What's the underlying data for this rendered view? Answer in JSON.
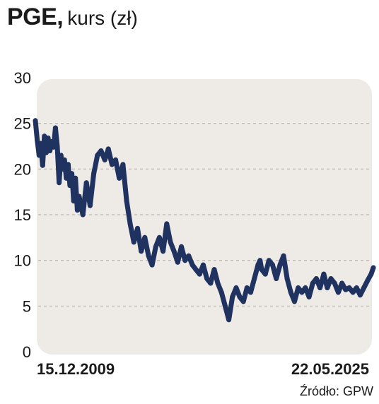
{
  "chart_data": {
    "type": "line",
    "title": "PGE,",
    "subtitle": "kurs (zł)",
    "xlabel": "",
    "ylabel": "",
    "ylim": [
      0,
      30
    ],
    "yticks": [
      0,
      5,
      10,
      15,
      20,
      25,
      30
    ],
    "ytick_labels": [
      "0",
      "5",
      "10",
      "15",
      "20",
      "25",
      "30"
    ],
    "x_start_label": "15.12.2009",
    "x_end_label": "22.05.2025",
    "grid": "horizontal dashed",
    "legend": "none",
    "series": [
      {
        "line_color": "#1f3260",
        "x": [
          "2009-12-15",
          "2010-01-15",
          "2010-02-15",
          "2010-03-15",
          "2010-04-15",
          "2010-05-15",
          "2010-06-15",
          "2010-07-15",
          "2010-08-15",
          "2010-09-15",
          "2010-10-15",
          "2010-11-15",
          "2010-12-15",
          "2011-01-15",
          "2011-02-15",
          "2011-03-15",
          "2011-04-15",
          "2011-05-15",
          "2011-06-15",
          "2011-07-15",
          "2011-08-15",
          "2011-09-15",
          "2011-10-15",
          "2011-11-15",
          "2011-12-15",
          "2012-02-15",
          "2012-04-15",
          "2012-06-15",
          "2012-08-15",
          "2012-10-15",
          "2012-12-15",
          "2013-02-15",
          "2013-04-15",
          "2013-06-15",
          "2013-08-15",
          "2013-10-15",
          "2013-12-15",
          "2014-02-15",
          "2014-04-15",
          "2014-06-15",
          "2014-08-15",
          "2014-10-15",
          "2014-12-15",
          "2015-02-15",
          "2015-04-15",
          "2015-06-15",
          "2015-08-15",
          "2015-10-15",
          "2015-12-15",
          "2016-02-15",
          "2016-04-15",
          "2016-06-15",
          "2016-08-15",
          "2016-10-15",
          "2016-12-15",
          "2017-02-15",
          "2017-04-15",
          "2017-06-15",
          "2017-08-15",
          "2017-10-15",
          "2017-12-15",
          "2018-02-15",
          "2018-04-15",
          "2018-06-15",
          "2018-08-15",
          "2018-10-15",
          "2018-12-15",
          "2019-02-15",
          "2019-04-15",
          "2019-06-15",
          "2019-08-15",
          "2019-10-15",
          "2019-12-15",
          "2020-02-15",
          "2020-03-20",
          "2020-04-15",
          "2020-06-15",
          "2020-08-15",
          "2020-10-15",
          "2020-12-15",
          "2021-02-15",
          "2021-04-15",
          "2021-06-15",
          "2021-08-15",
          "2021-10-15",
          "2021-12-15",
          "2022-02-15",
          "2022-04-15",
          "2022-06-15",
          "2022-08-15",
          "2022-10-15",
          "2022-12-15",
          "2023-02-15",
          "2023-04-15",
          "2023-06-15",
          "2023-08-15",
          "2023-10-15",
          "2023-12-15",
          "2024-02-15",
          "2024-04-15",
          "2024-06-15",
          "2024-08-15",
          "2024-10-15",
          "2024-12-15",
          "2025-02-15",
          "2025-04-15",
          "2025-05-22"
        ],
        "values": [
          25.3,
          23.2,
          21.5,
          22.8,
          20.4,
          23.6,
          21.8,
          23.4,
          22.0,
          23.0,
          22.4,
          24.5,
          22.5,
          18.5,
          21.5,
          20.0,
          21.0,
          19.0,
          20.5,
          18.2,
          19.5,
          16.5,
          19.0,
          15.5,
          17.0,
          15.0,
          18.5,
          16.0,
          19.5,
          21.5,
          22.0,
          21.0,
          22.2,
          20.5,
          21.0,
          19.0,
          20.5,
          16.5,
          14.0,
          12.0,
          13.5,
          11.0,
          12.5,
          10.5,
          9.5,
          11.5,
          12.5,
          11.0,
          14.0,
          12.0,
          11.0,
          9.8,
          11.5,
          10.0,
          10.5,
          9.5,
          9.0,
          8.5,
          9.5,
          8.0,
          7.5,
          9.0,
          7.5,
          6.5,
          5.0,
          3.5,
          6.0,
          7.0,
          6.0,
          5.5,
          7.0,
          6.5,
          8.0,
          9.5,
          10.0,
          9.0,
          8.5,
          10.0,
          9.5,
          8.0,
          9.5,
          10.5,
          8.0,
          6.5,
          5.5,
          7.0,
          6.5,
          7.0,
          6.0,
          7.5,
          8.0,
          7.0,
          8.5,
          7.0,
          8.0,
          7.5,
          6.5,
          7.5,
          6.8,
          7.0,
          6.5,
          7.0,
          6.2,
          7.0,
          7.8,
          8.5,
          9.2
        ]
      }
    ]
  },
  "source_text": "Źródło: GPW"
}
